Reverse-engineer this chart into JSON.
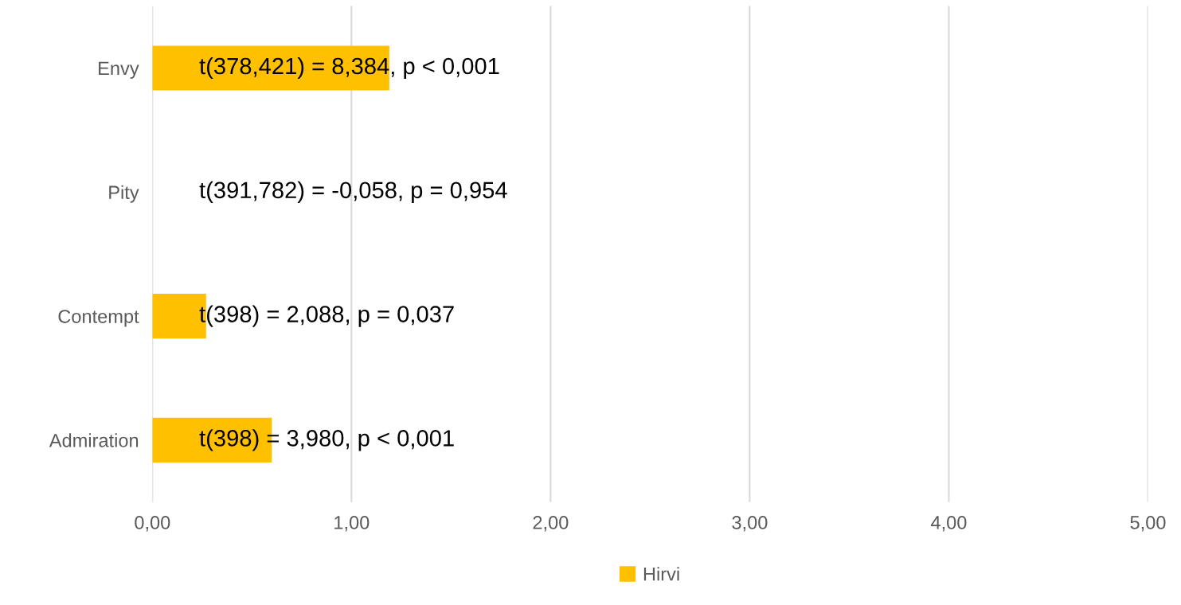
{
  "chart_data": {
    "type": "bar",
    "orientation": "horizontal",
    "categories": [
      "Envy",
      "Pity",
      "Contempt",
      "Admiration"
    ],
    "series": [
      {
        "name": "Hirvi",
        "color": "#ffc000",
        "values": [
          1.19,
          0.0,
          0.27,
          0.6
        ]
      }
    ],
    "xlim": [
      0,
      5
    ],
    "xticks": [
      {
        "value": 0,
        "label": "0,00"
      },
      {
        "value": 1,
        "label": "1,00"
      },
      {
        "value": 2,
        "label": "2,00"
      },
      {
        "value": 3,
        "label": "3,00"
      },
      {
        "value": 4,
        "label": "4,00"
      },
      {
        "value": 5,
        "label": "5,00"
      }
    ],
    "grid": "x",
    "legend": "bottom",
    "annotations": [
      "t(378,421) = 8,384, p < 0,001",
      "t(391,782) = -0,058, p = 0,954",
      "t(398) = 2,088, p = 0,037",
      "t(398) = 3,980, p < 0,001"
    ]
  }
}
